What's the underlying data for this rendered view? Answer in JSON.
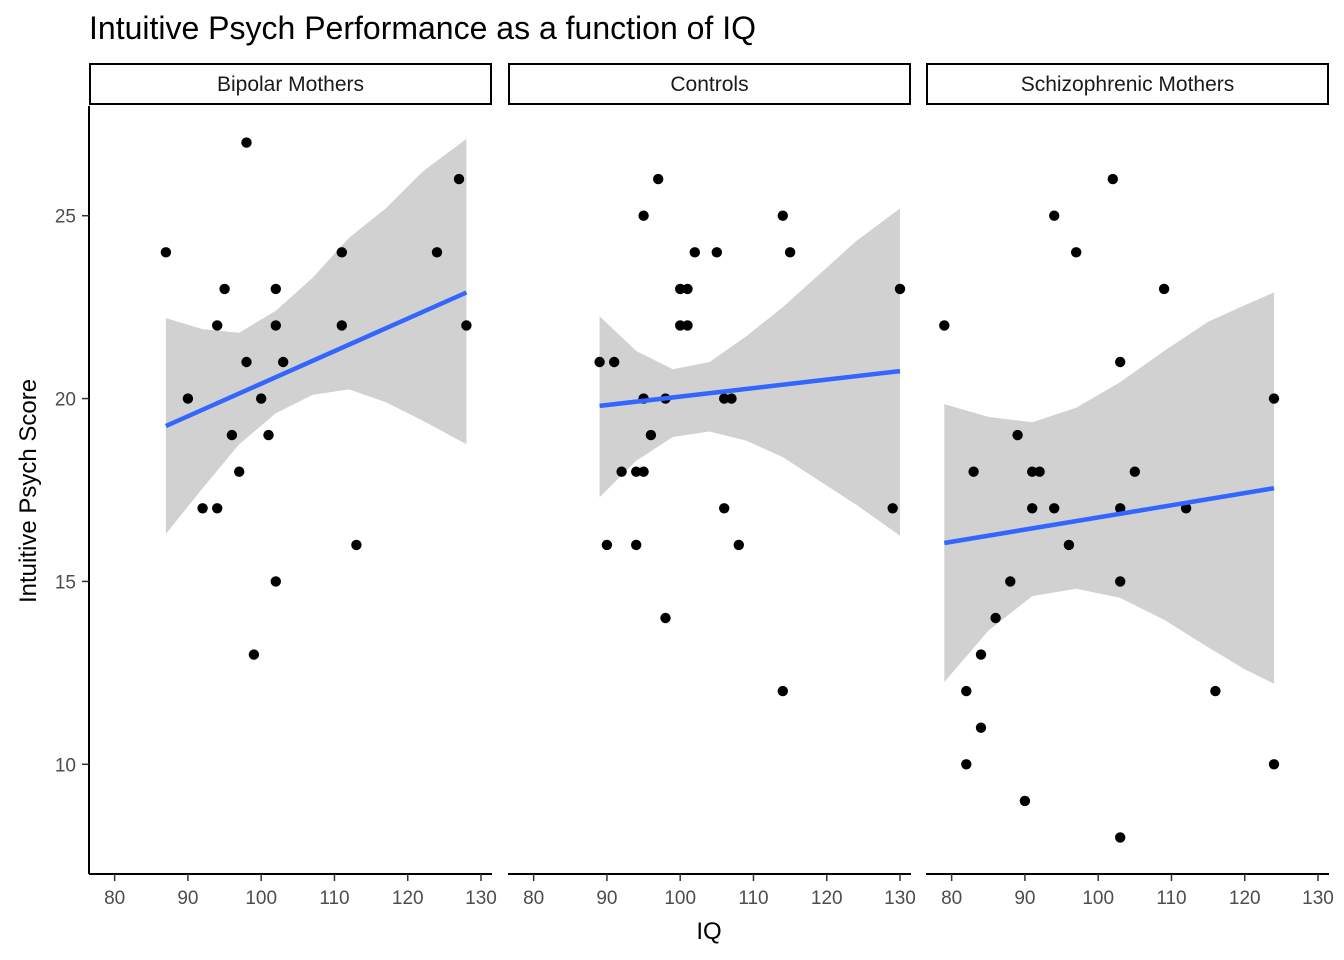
{
  "chart_data": {
    "type": "scatter",
    "title": "Intuitive Psych Performance as a function of IQ",
    "xlabel": "IQ",
    "ylabel": "Intuitive Psych Score",
    "xlim": [
      76.5,
      131.5
    ],
    "ylim": [
      7.0,
      28.0
    ],
    "xticks": [
      80,
      90,
      100,
      110,
      120,
      130
    ],
    "yticks": [
      10,
      15,
      20,
      25
    ],
    "grid": false,
    "colors": {
      "points": "#000000",
      "fit_line": "#3366ff",
      "confidence_band": "#999999"
    },
    "panels": [
      {
        "name": "Bipolar Mothers",
        "points": [
          {
            "x": 87,
            "y": 24
          },
          {
            "x": 90,
            "y": 20
          },
          {
            "x": 92,
            "y": 17
          },
          {
            "x": 94,
            "y": 17
          },
          {
            "x": 94,
            "y": 22
          },
          {
            "x": 95,
            "y": 23
          },
          {
            "x": 96,
            "y": 19
          },
          {
            "x": 97,
            "y": 18
          },
          {
            "x": 98,
            "y": 27
          },
          {
            "x": 98,
            "y": 21
          },
          {
            "x": 99,
            "y": 13
          },
          {
            "x": 100,
            "y": 20
          },
          {
            "x": 101,
            "y": 19
          },
          {
            "x": 102,
            "y": 23
          },
          {
            "x": 102,
            "y": 22
          },
          {
            "x": 102,
            "y": 15
          },
          {
            "x": 103,
            "y": 21
          },
          {
            "x": 111,
            "y": 24
          },
          {
            "x": 111,
            "y": 22
          },
          {
            "x": 113,
            "y": 16
          },
          {
            "x": 124,
            "y": 24
          },
          {
            "x": 127,
            "y": 26
          },
          {
            "x": 128,
            "y": 22
          }
        ],
        "fit": {
          "x": [
            87,
            128
          ],
          "y": [
            19.25,
            22.9
          ]
        },
        "band": {
          "x": [
            87,
            92,
            97,
            102,
            107,
            112,
            117,
            122,
            128
          ],
          "lower": [
            16.3,
            17.55,
            18.75,
            19.6,
            20.1,
            20.25,
            19.9,
            19.4,
            18.75
          ],
          "upper": [
            22.2,
            21.9,
            21.8,
            22.4,
            23.3,
            24.4,
            25.2,
            26.2,
            27.1
          ]
        }
      },
      {
        "name": "Controls",
        "points": [
          {
            "x": 89,
            "y": 21
          },
          {
            "x": 90,
            "y": 16
          },
          {
            "x": 91,
            "y": 21
          },
          {
            "x": 92,
            "y": 18
          },
          {
            "x": 94,
            "y": 16
          },
          {
            "x": 94,
            "y": 18
          },
          {
            "x": 95,
            "y": 25
          },
          {
            "x": 95,
            "y": 20
          },
          {
            "x": 95,
            "y": 18
          },
          {
            "x": 96,
            "y": 19
          },
          {
            "x": 97,
            "y": 26
          },
          {
            "x": 98,
            "y": 20
          },
          {
            "x": 98,
            "y": 14
          },
          {
            "x": 100,
            "y": 23
          },
          {
            "x": 100,
            "y": 22
          },
          {
            "x": 101,
            "y": 23
          },
          {
            "x": 101,
            "y": 22
          },
          {
            "x": 102,
            "y": 24
          },
          {
            "x": 105,
            "y": 24
          },
          {
            "x": 106,
            "y": 20
          },
          {
            "x": 106,
            "y": 17
          },
          {
            "x": 107,
            "y": 20
          },
          {
            "x": 108,
            "y": 16
          },
          {
            "x": 114,
            "y": 25
          },
          {
            "x": 114,
            "y": 12
          },
          {
            "x": 115,
            "y": 24
          },
          {
            "x": 129,
            "y": 17
          },
          {
            "x": 130,
            "y": 23
          }
        ],
        "fit": {
          "x": [
            89,
            130
          ],
          "y": [
            19.8,
            20.75
          ]
        },
        "band": {
          "x": [
            89,
            94,
            99,
            104,
            109,
            114,
            119,
            124,
            130
          ],
          "lower": [
            17.3,
            18.3,
            18.95,
            19.1,
            18.85,
            18.4,
            17.75,
            17.1,
            16.25
          ],
          "upper": [
            22.25,
            21.3,
            20.8,
            21.0,
            21.7,
            22.5,
            23.4,
            24.3,
            25.2
          ]
        }
      },
      {
        "name": "Schizophrenic Mothers",
        "points": [
          {
            "x": 79,
            "y": 22
          },
          {
            "x": 82,
            "y": 12
          },
          {
            "x": 82,
            "y": 10
          },
          {
            "x": 83,
            "y": 18
          },
          {
            "x": 84,
            "y": 13
          },
          {
            "x": 84,
            "y": 11
          },
          {
            "x": 86,
            "y": 14
          },
          {
            "x": 88,
            "y": 15
          },
          {
            "x": 89,
            "y": 19
          },
          {
            "x": 90,
            "y": 9
          },
          {
            "x": 91,
            "y": 18
          },
          {
            "x": 91,
            "y": 17
          },
          {
            "x": 92,
            "y": 18
          },
          {
            "x": 94,
            "y": 25
          },
          {
            "x": 94,
            "y": 17
          },
          {
            "x": 96,
            "y": 16
          },
          {
            "x": 97,
            "y": 24
          },
          {
            "x": 102,
            "y": 26
          },
          {
            "x": 103,
            "y": 21
          },
          {
            "x": 103,
            "y": 17
          },
          {
            "x": 103,
            "y": 15
          },
          {
            "x": 103,
            "y": 8
          },
          {
            "x": 105,
            "y": 18
          },
          {
            "x": 109,
            "y": 23
          },
          {
            "x": 112,
            "y": 17
          },
          {
            "x": 116,
            "y": 12
          },
          {
            "x": 124,
            "y": 20
          },
          {
            "x": 124,
            "y": 10
          }
        ],
        "fit": {
          "x": [
            79,
            124
          ],
          "y": [
            16.05,
            17.55
          ]
        },
        "band": {
          "x": [
            79,
            85,
            91,
            97,
            103,
            109,
            115,
            120,
            124
          ],
          "lower": [
            12.25,
            13.65,
            14.6,
            14.8,
            14.55,
            13.95,
            13.2,
            12.6,
            12.2
          ],
          "upper": [
            19.85,
            19.5,
            19.35,
            19.75,
            20.45,
            21.3,
            22.1,
            22.55,
            22.9
          ]
        }
      }
    ]
  }
}
